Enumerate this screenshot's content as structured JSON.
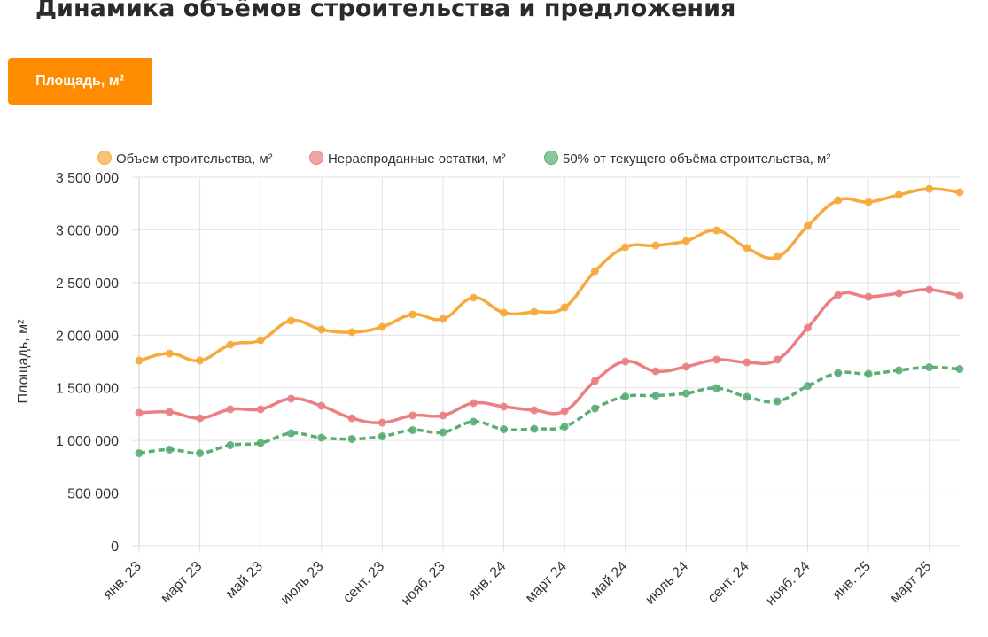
{
  "title": "Динамика объёмов строительства и предложения",
  "tabs": [
    {
      "label": "Площадь, м²",
      "active": true
    }
  ],
  "chart_data": {
    "type": "line",
    "ylabel": "Площадь, м²",
    "ylim": [
      0,
      3500000
    ],
    "y_ticks": [
      "0",
      "500 000",
      "1 000 000",
      "1 500 000",
      "2 000 000",
      "2 500 000",
      "3 000 000",
      "3 500 000"
    ],
    "y_tick_values": [
      0,
      500000,
      1000000,
      1500000,
      2000000,
      2500000,
      3000000,
      3500000
    ],
    "x_tick_labels": [
      "янв. 23",
      "март 23",
      "май 23",
      "июль 23",
      "сент. 23",
      "нояб. 23",
      "янв. 24",
      "март 24",
      "май 24",
      "июль 24",
      "сент. 24",
      "нояб. 24",
      "янв. 25",
      "март 25"
    ],
    "x_note_labels_every": 2,
    "legend_position": "top",
    "grid": true,
    "series": [
      {
        "name": "Объем строительства, м²",
        "color": "#f7a93b",
        "dashed": false,
        "values": [
          1758000,
          1826000,
          1758000,
          1910000,
          1952000,
          2137000,
          2053000,
          2028000,
          2078000,
          2196000,
          2154000,
          2356000,
          2213000,
          2221000,
          2263000,
          2608000,
          2835000,
          2852000,
          2894000,
          2995000,
          2827000,
          2743000,
          3037000,
          3281000,
          3264000,
          3332000,
          3390000,
          3357000
        ]
      },
      {
        "name": "Нераспроданные остатки, м²",
        "color": "#eb7f82",
        "dashed": false,
        "values": [
          1262000,
          1270000,
          1211000,
          1296000,
          1296000,
          1397000,
          1329000,
          1211000,
          1169000,
          1237000,
          1237000,
          1355000,
          1321000,
          1287000,
          1279000,
          1565000,
          1750000,
          1657000,
          1700000,
          1767000,
          1742000,
          1767000,
          2070000,
          2381000,
          2364000,
          2398000,
          2432000,
          2373000
        ]
      },
      {
        "name": "50% от текущего объёма строительства, м²",
        "color": "#5aae74",
        "dashed": true,
        "values": [
          879000,
          913000,
          879000,
          955000,
          976000,
          1068000,
          1026000,
          1014000,
          1039000,
          1098000,
          1077000,
          1178000,
          1106000,
          1110000,
          1131000,
          1304000,
          1417000,
          1426000,
          1447000,
          1497000,
          1413000,
          1371000,
          1518000,
          1640000,
          1632000,
          1666000,
          1695000,
          1678000
        ]
      }
    ]
  }
}
